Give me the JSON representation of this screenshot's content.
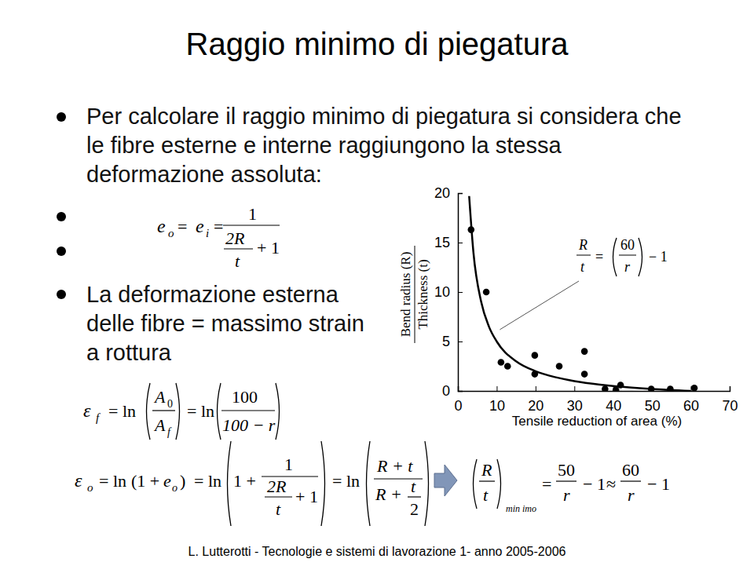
{
  "slide": {
    "title": "Raggio minimo di piegatura",
    "bullets": [
      {
        "lines": [
          "Per calcolare il raggio minimo di piegatura si considera che",
          "le fibre esterne e interne raggiungono la stessa",
          "deformazione assoluta:"
        ]
      },
      {
        "lines": [
          "La deformazione esterna",
          "delle fibre = massimo strain",
          "a rottura"
        ]
      }
    ],
    "footer": "L. Lutterotti - Tecnologie e sistemi di lavorazione 1- anno 2005-2006"
  },
  "formulas": [
    [
      "e",
      "o",
      "=",
      "e",
      "i",
      "=",
      "1",
      "2R",
      "t",
      "+ 1"
    ],
    [
      "ε",
      "f",
      "= ln",
      "A",
      "0",
      "A",
      "f",
      "= ln",
      "100",
      "100 − r"
    ],
    [
      "ε",
      "o",
      "= ln",
      "(1 +",
      "e",
      "o",
      ")",
      "= ln",
      "1 +",
      "1",
      "2R",
      "t",
      "+ 1",
      "= ln",
      "R + t",
      "R +",
      "t",
      "2"
    ],
    [
      "R",
      "t",
      "min imo",
      "=",
      "50",
      "r",
      "− 1",
      "≈",
      "60",
      "r",
      "− 1"
    ]
  ],
  "chart_data": {
    "type": "scatter",
    "xlabel": "Tensile reduction of area (%)",
    "ylabel": [
      "Bend radius (R)",
      "Thickness (t)"
    ],
    "xlim": [
      0,
      70
    ],
    "xticks": [
      0,
      10,
      20,
      30,
      40,
      50,
      60,
      70
    ],
    "ylim": [
      0,
      20
    ],
    "yticks": [
      0,
      5,
      10,
      15,
      20
    ],
    "grid": false,
    "series": [
      {
        "type": "scatter",
        "marker": "circle",
        "color": "#000000",
        "x": [
          3.4,
          7.3,
          11.1,
          12.8,
          19.8,
          19.8,
          26.1,
          32.6,
          32.6,
          37.9,
          40.7,
          41.9,
          49.8,
          54.7,
          60.9
        ],
        "values": [
          16.3,
          10.0,
          2.9,
          2.5,
          3.6,
          1.7,
          2.5,
          4.0,
          1.7,
          0.2,
          0.1,
          0.6,
          0.2,
          0.2,
          0.3
        ]
      },
      {
        "type": "line",
        "line_style": "solid",
        "color": "#000000",
        "x": [
          2.9,
          4,
          6,
          8,
          10,
          15,
          20,
          25,
          30,
          40,
          50,
          60
        ],
        "values": [
          19.7,
          14,
          9,
          6.5,
          5,
          3,
          2,
          1.4,
          1,
          0.5,
          0.2,
          0
        ]
      }
    ],
    "annotations": [
      {
        "tokens": [
          "R",
          "t",
          "=",
          "60",
          "r",
          "− 1"
        ],
        "x": 10.8,
        "y": 6.2
      }
    ]
  }
}
